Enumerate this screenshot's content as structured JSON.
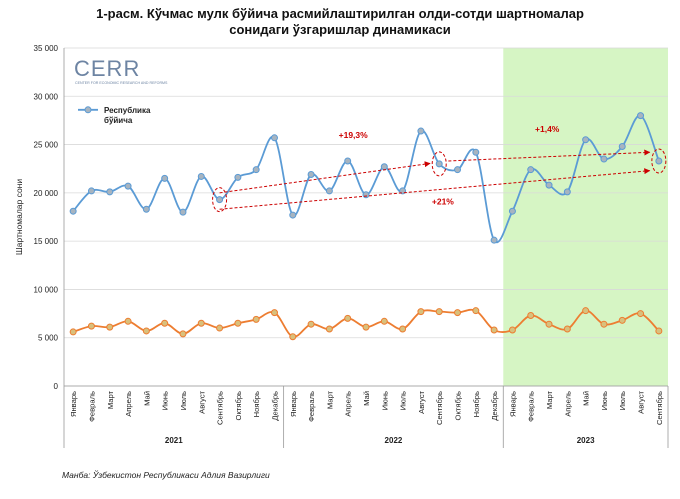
{
  "title_line1": "1-расм. Кўчмас мулк бўйича расмийлаштирилган олди-сотди шартномалар",
  "title_line2": "сонидаги ўзгаришлар динамикаси",
  "source": "Манба: Ўзбекистон Республикаси Адлия Вазирлиги",
  "logo": {
    "text": "CERR",
    "subtitle": "CENTER FOR ECONOMIC RESEARCH AND REFORMS"
  },
  "colors": {
    "series_blue": "#5b9bd5",
    "series_orange": "#ed7d31",
    "highlight_2023": "#d6f5c4",
    "annotation_red": "#cc0000",
    "grid": "#d9d9d9"
  },
  "chart_data": {
    "type": "line",
    "ylabel": "Шартномалар сони",
    "ylim": [
      0,
      35000
    ],
    "yticks": [
      0,
      5000,
      10000,
      15000,
      20000,
      25000,
      30000,
      35000
    ],
    "ytick_labels": [
      "0",
      "5 000",
      "10 000",
      "15 000",
      "20 000",
      "25 000",
      "30 000",
      "35 000"
    ],
    "categories": [
      "Январь",
      "Февраль",
      "Март",
      "Апрель",
      "Май",
      "Июнь",
      "Июль",
      "Август",
      "Сентябрь",
      "Октябрь",
      "Ноябрь",
      "Декабрь",
      "Январь",
      "Февраль",
      "Март",
      "Апрель",
      "Май",
      "Июнь",
      "Июль",
      "Август",
      "Сентябрь",
      "Октябрь",
      "Ноябрь",
      "Декабрь",
      "Январь",
      "Февраль",
      "Март",
      "Апрель",
      "Май",
      "Июнь",
      "Июль",
      "Август",
      "Сентябрь"
    ],
    "years": [
      {
        "label": "2021",
        "start": 0,
        "end": 11
      },
      {
        "label": "2022",
        "start": 12,
        "end": 23
      },
      {
        "label": "2023",
        "start": 24,
        "end": 32
      }
    ],
    "highlight_range": [
      24,
      32
    ],
    "series": [
      {
        "name": "Республика бўйича",
        "color": "#5b9bd5",
        "values": [
          18100,
          20200,
          20100,
          20700,
          18300,
          21500,
          18000,
          21700,
          19300,
          21600,
          22400,
          25700,
          17700,
          21900,
          20200,
          23300,
          19800,
          22700,
          20200,
          26400,
          23000,
          22400,
          24200,
          15100,
          18100,
          22400,
          20800,
          20100,
          25500,
          23500,
          24800,
          28000,
          23300
        ]
      },
      {
        "name": "",
        "color": "#ed7d31",
        "values": [
          5600,
          6200,
          6100,
          6700,
          5700,
          6500,
          5400,
          6500,
          6000,
          6500,
          6900,
          7600,
          5100,
          6400,
          5900,
          7000,
          6100,
          6700,
          5900,
          7700,
          7700,
          7600,
          7800,
          5800,
          5800,
          7300,
          6400,
          5900,
          7800,
          6400,
          6800,
          7500,
          5700
        ]
      }
    ],
    "annotations": [
      {
        "text": "+19,3%",
        "from_index": 8,
        "to_index": 20,
        "value_from": 19300,
        "value_to": 23000
      },
      {
        "text": "+21%",
        "from_index": 8,
        "to_index": 32,
        "value_from": 19300,
        "value_to": 23300
      },
      {
        "text": "+1,4%",
        "from_index": 20,
        "to_index": 32,
        "value_from": 23000,
        "value_to": 23300
      }
    ],
    "grid": true,
    "legend_position": "top-left"
  }
}
